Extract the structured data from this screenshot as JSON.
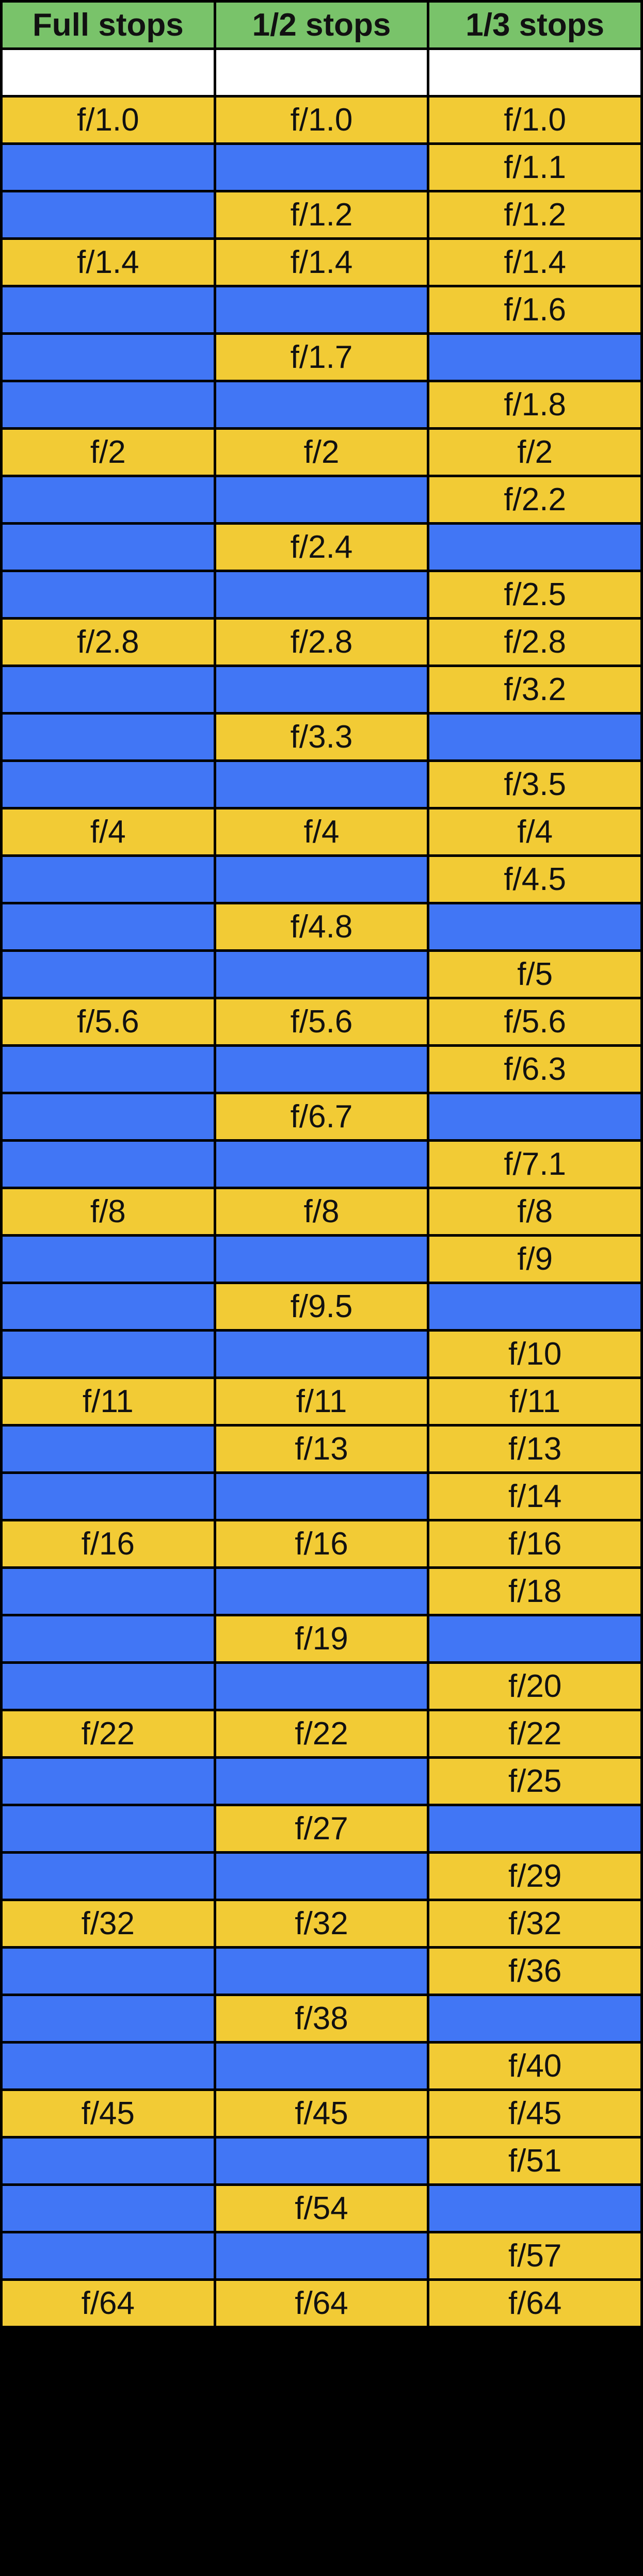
{
  "table": {
    "headers": [
      "Full stops",
      "1/2 stops",
      "1/3 stops"
    ],
    "colors": {
      "header": "#79c36a",
      "value_cell": "#f2cb35",
      "empty_cell": "#4176f5",
      "blank_row": "#ffffff",
      "border": "#000000"
    },
    "rows": [
      [
        "f/1.0",
        "f/1.0",
        "f/1.0"
      ],
      [
        "",
        "",
        "f/1.1"
      ],
      [
        "",
        "f/1.2",
        "f/1.2"
      ],
      [
        "f/1.4",
        "f/1.4",
        "f/1.4"
      ],
      [
        "",
        "",
        "f/1.6"
      ],
      [
        "",
        "f/1.7",
        ""
      ],
      [
        "",
        "",
        "f/1.8"
      ],
      [
        "f/2",
        "f/2",
        "f/2"
      ],
      [
        "",
        "",
        "f/2.2"
      ],
      [
        "",
        "f/2.4",
        ""
      ],
      [
        "",
        "",
        "f/2.5"
      ],
      [
        "f/2.8",
        "f/2.8",
        "f/2.8"
      ],
      [
        "",
        "",
        "f/3.2"
      ],
      [
        "",
        "f/3.3",
        ""
      ],
      [
        "",
        "",
        "f/3.5"
      ],
      [
        "f/4",
        "f/4",
        "f/4"
      ],
      [
        "",
        "",
        "f/4.5"
      ],
      [
        "",
        "f/4.8",
        ""
      ],
      [
        "",
        "",
        "f/5"
      ],
      [
        "f/5.6",
        "f/5.6",
        "f/5.6"
      ],
      [
        "",
        "",
        "f/6.3"
      ],
      [
        "",
        "f/6.7",
        ""
      ],
      [
        "",
        "",
        "f/7.1"
      ],
      [
        "f/8",
        "f/8",
        "f/8"
      ],
      [
        "",
        "",
        "f/9"
      ],
      [
        "",
        "f/9.5",
        ""
      ],
      [
        "",
        "",
        "f/10"
      ],
      [
        "f/11",
        "f/11",
        "f/11"
      ],
      [
        "",
        "f/13",
        "f/13"
      ],
      [
        "",
        "",
        "f/14"
      ],
      [
        "f/16",
        "f/16",
        "f/16"
      ],
      [
        "",
        "",
        "f/18"
      ],
      [
        "",
        "f/19",
        ""
      ],
      [
        "",
        "",
        "f/20"
      ],
      [
        "f/22",
        "f/22",
        "f/22"
      ],
      [
        "",
        "",
        "f/25"
      ],
      [
        "",
        "f/27",
        ""
      ],
      [
        "",
        "",
        "f/29"
      ],
      [
        "f/32",
        "f/32",
        "f/32"
      ],
      [
        "",
        "",
        "f/36"
      ],
      [
        "",
        "f/38",
        ""
      ],
      [
        "",
        "",
        "f/40"
      ],
      [
        "f/45",
        "f/45",
        "f/45"
      ],
      [
        "",
        "",
        "f/51"
      ],
      [
        "",
        "f/54",
        ""
      ],
      [
        "",
        "",
        "f/57"
      ],
      [
        "f/64",
        "f/64",
        "f/64"
      ]
    ]
  }
}
